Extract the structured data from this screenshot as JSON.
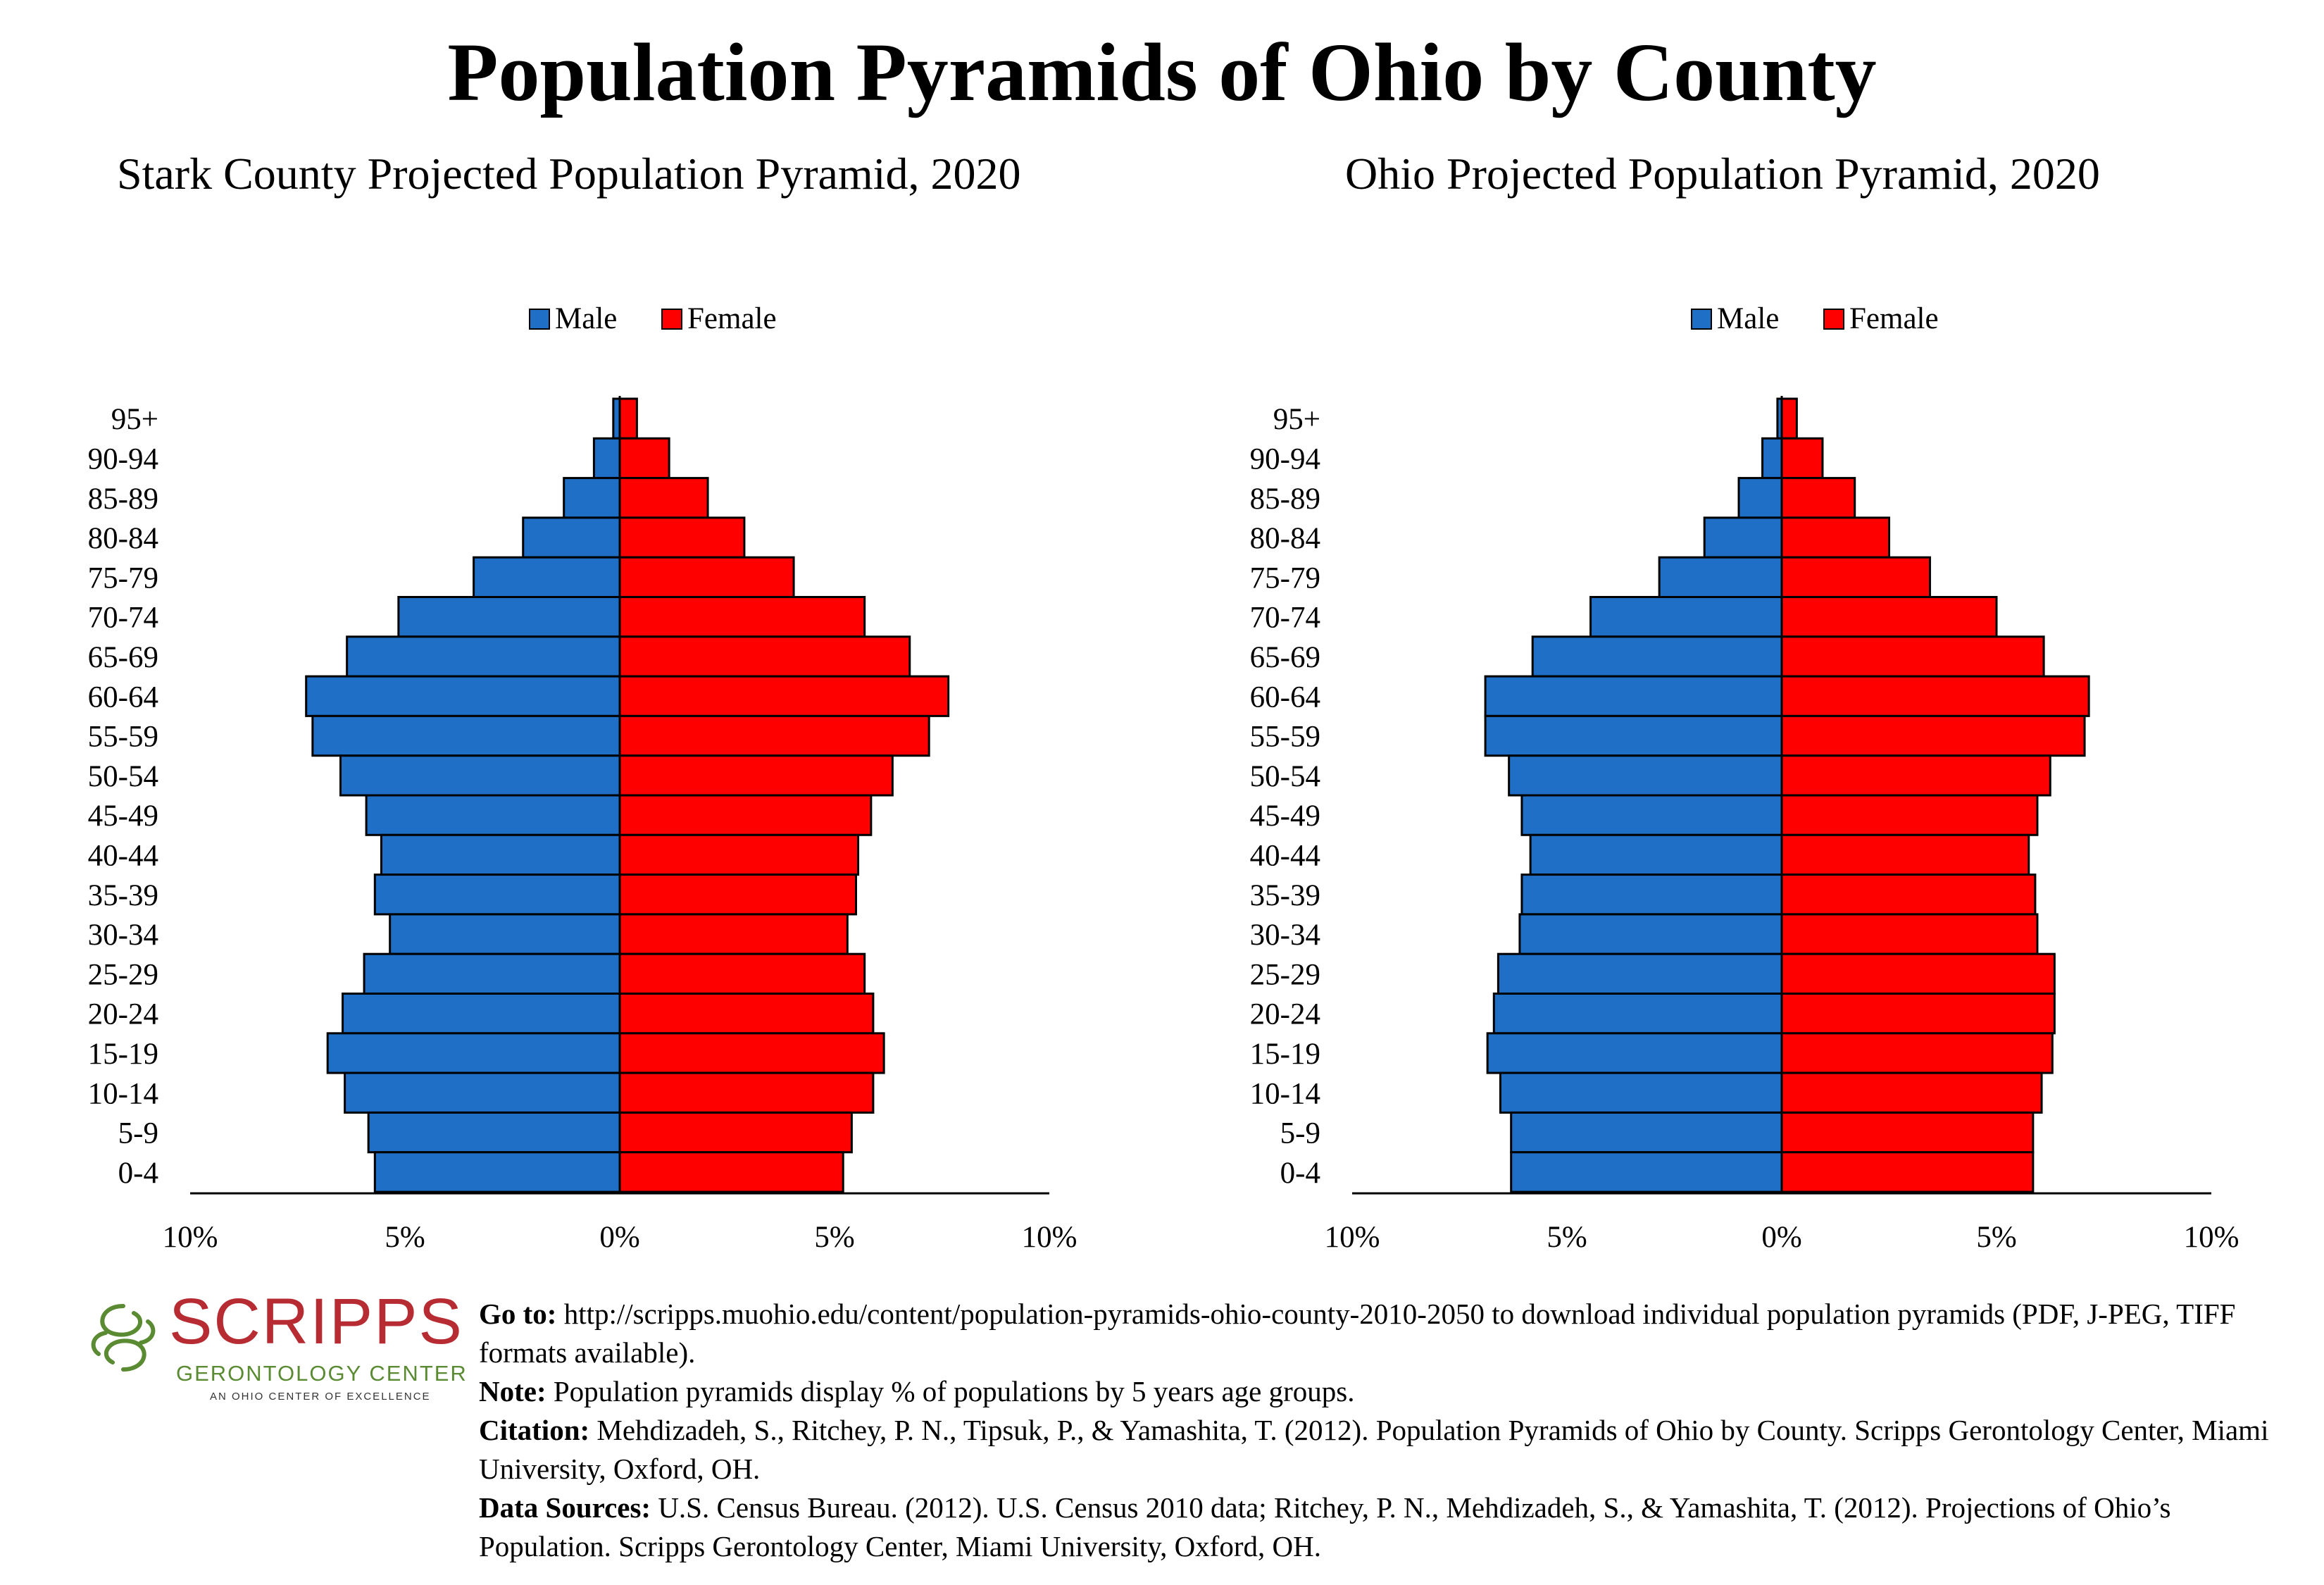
{
  "title": "Population Pyramids of Ohio by County",
  "legend": {
    "male": "Male",
    "female": "Female"
  },
  "colors": {
    "male": "#1f6fc6",
    "female": "#ff0000",
    "logo_red": "#b62c32",
    "logo_green": "#5a8a32"
  },
  "chart_data": [
    {
      "type": "bar",
      "orientation": "horizontal-pyramid",
      "title": "Stark County Projected Population Pyramid, 2020",
      "legend_position": "top",
      "categories": [
        "95+",
        "90-94",
        "85-89",
        "80-84",
        "75-79",
        "70-74",
        "65-69",
        "60-64",
        "55-59",
        "50-54",
        "45-49",
        "40-44",
        "35-39",
        "30-34",
        "25-29",
        "20-24",
        "15-19",
        "10-14",
        "5-9",
        "0-4"
      ],
      "series": [
        {
          "name": "Male",
          "values": [
            0.15,
            0.6,
            1.3,
            2.25,
            3.4,
            5.15,
            6.35,
            7.3,
            7.15,
            6.5,
            5.9,
            5.55,
            5.7,
            5.35,
            5.95,
            6.45,
            6.8,
            6.4,
            5.85,
            5.7
          ]
        },
        {
          "name": "Female",
          "values": [
            0.4,
            1.15,
            2.05,
            2.9,
            4.05,
            5.7,
            6.75,
            7.65,
            7.2,
            6.35,
            5.85,
            5.55,
            5.5,
            5.3,
            5.7,
            5.9,
            6.15,
            5.9,
            5.4,
            5.2
          ]
        }
      ],
      "xlim": [
        -10,
        10
      ],
      "xticks": [
        "10%",
        "5%",
        "0%",
        "5%",
        "10%"
      ]
    },
    {
      "type": "bar",
      "orientation": "horizontal-pyramid",
      "title": "Ohio Projected Population Pyramid, 2020",
      "legend_position": "top",
      "categories": [
        "95+",
        "90-94",
        "85-89",
        "80-84",
        "75-79",
        "70-74",
        "65-69",
        "60-64",
        "55-59",
        "50-54",
        "45-49",
        "40-44",
        "35-39",
        "30-34",
        "25-29",
        "20-24",
        "15-19",
        "10-14",
        "5-9",
        "0-4"
      ],
      "series": [
        {
          "name": "Male",
          "values": [
            0.1,
            0.45,
            1.0,
            1.8,
            2.85,
            4.45,
            5.8,
            6.9,
            6.9,
            6.35,
            6.05,
            5.85,
            6.05,
            6.1,
            6.6,
            6.7,
            6.85,
            6.55,
            6.3,
            6.3
          ]
        },
        {
          "name": "Female",
          "values": [
            0.35,
            0.95,
            1.7,
            2.5,
            3.45,
            5.0,
            6.1,
            7.15,
            7.05,
            6.25,
            5.95,
            5.75,
            5.9,
            5.95,
            6.35,
            6.35,
            6.3,
            6.05,
            5.85,
            5.85
          ]
        }
      ],
      "xlim": [
        -10,
        10
      ],
      "xticks": [
        "10%",
        "5%",
        "0%",
        "5%",
        "10%"
      ]
    }
  ],
  "logo": {
    "word": "SCRIPPS",
    "subtitle": "GERONTOLOGY CENTER",
    "tagline": "AN OHIO CENTER OF EXCELLENCE"
  },
  "notes": [
    {
      "label": "Go to:",
      "text": " http://scripps.muohio.edu/content/population-pyramids-ohio-county-2010-2050 to download individual population pyramids (PDF, J-PEG, TIFF formats available)."
    },
    {
      "label": "Note:",
      "text": " Population pyramids display % of populations by 5 years age groups."
    },
    {
      "label": "Citation:",
      "text": " Mehdizadeh, S., Ritchey, P. N., Tipsuk, P., & Yamashita, T. (2012). Population Pyramids of Ohio by County. Scripps Gerontology Center, Miami University, Oxford, OH."
    },
    {
      "label": "Data Sources:",
      "text": " U.S. Census Bureau. (2012). U.S. Census 2010 data; Ritchey, P. N., Mehdizadeh, S., & Yamashita, T. (2012). Projections of Ohio’s Population. Scripps Gerontology Center, Miami University, Oxford, OH."
    }
  ]
}
